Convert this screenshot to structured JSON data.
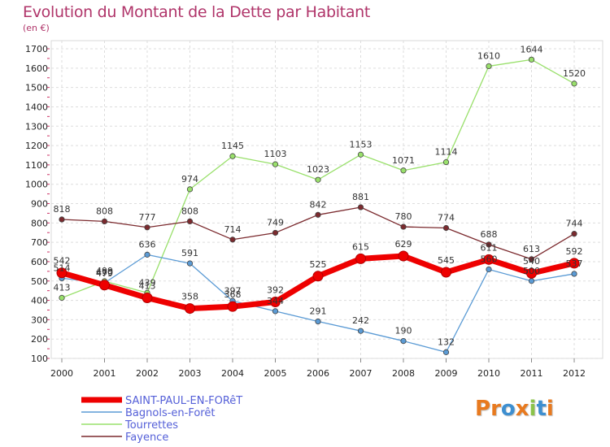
{
  "chart_data": {
    "type": "line",
    "title": "Evolution du Montant de la Dette par Habitant",
    "subtitle": "(en €)",
    "x": [
      "2000",
      "2001",
      "2002",
      "2003",
      "2004",
      "2005",
      "2006",
      "2007",
      "2008",
      "2009",
      "2010",
      "2011",
      "2012"
    ],
    "yticks": [
      100,
      200,
      300,
      400,
      500,
      600,
      700,
      800,
      900,
      1000,
      1100,
      1200,
      1300,
      1400,
      1500,
      1600,
      1700
    ],
    "ylim": [
      100,
      1700
    ],
    "grid": true,
    "legend_position": "bottom-left",
    "series": [
      {
        "name": "SAINT-PAUL-EN-FORêT",
        "color": "#ee0000",
        "width": 7,
        "values": [
          542,
          479,
          413,
          358,
          368,
          392,
          525,
          615,
          629,
          545,
          611,
          540,
          592
        ]
      },
      {
        "name": "Bagnols-en-Forêt",
        "color": "#5b9bd5",
        "width": 1.3,
        "values": [
          514,
          490,
          636,
          591,
          397,
          344,
          291,
          242,
          190,
          132,
          560,
          500,
          537
        ]
      },
      {
        "name": "Tourrettes",
        "color": "#99e06b",
        "width": 1.3,
        "values": [
          413,
          499,
          439,
          974,
          1145,
          1103,
          1023,
          1153,
          1071,
          1114,
          1610,
          1644,
          1520
        ]
      },
      {
        "name": "Fayence",
        "color": "#7b2a2e",
        "width": 1.3,
        "values": [
          818,
          808,
          777,
          808,
          714,
          749,
          842,
          881,
          780,
          774,
          688,
          613,
          744
        ]
      }
    ],
    "value_labels": [
      [
        "542",
        "479",
        "413",
        "358",
        "368",
        "392",
        "525",
        "615",
        "629",
        "545",
        "611",
        "540",
        "592"
      ],
      [
        "514",
        "490",
        "636",
        "591",
        "397",
        "344",
        "291",
        "242",
        "190",
        "132",
        "560",
        "500",
        "537"
      ],
      [
        "413",
        "499",
        "439",
        "974",
        "1145",
        "1103",
        "1023",
        "1153",
        "1071",
        "1114",
        "1610",
        "1644",
        "1520"
      ],
      [
        "818",
        "808",
        "777",
        "808",
        "714",
        "749",
        "842",
        "881",
        "780",
        "774",
        "688",
        "613",
        "744"
      ]
    ]
  },
  "brand": {
    "letters": [
      "P",
      "r",
      "o",
      "x",
      "i",
      "t",
      "i"
    ],
    "colors": [
      "#e87a1f",
      "#e87a1f",
      "#3e8fd0",
      "#e87a1f",
      "#8bc34a",
      "#3e8fd0",
      "#e87a1f"
    ]
  }
}
